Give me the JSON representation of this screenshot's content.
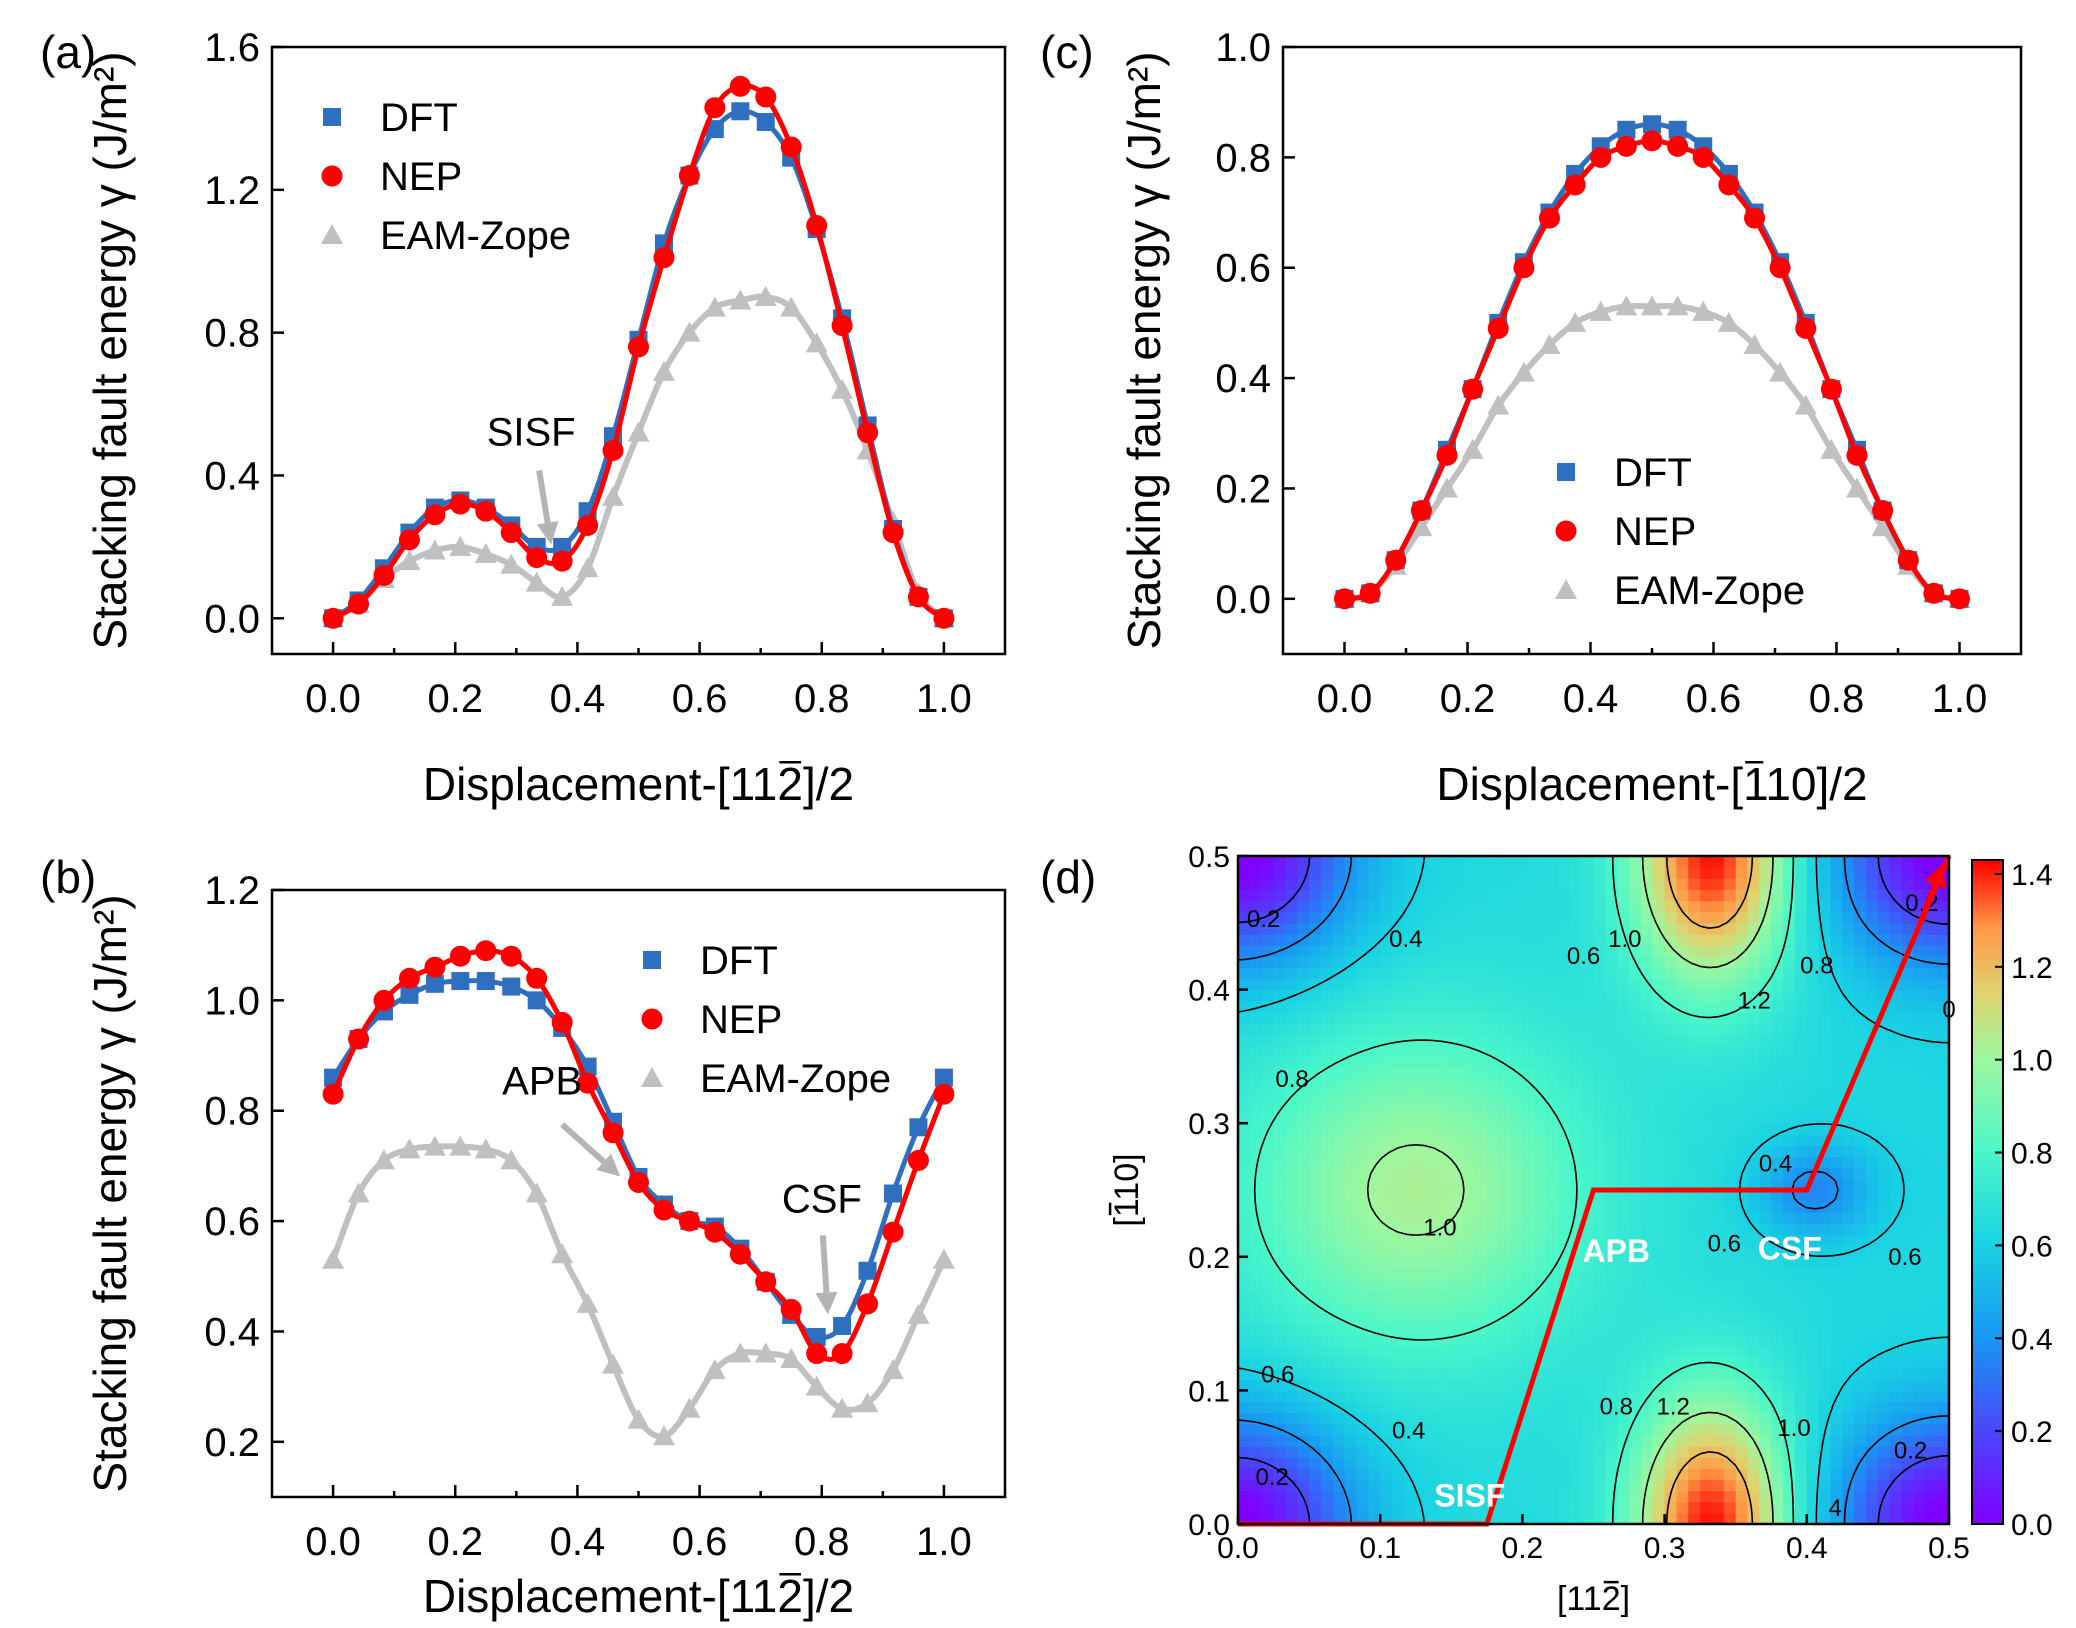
{
  "colors": {
    "dft": "#2e6fbf",
    "nep": "#ff0000",
    "eam": "#c0c0c0",
    "arrow": "#b4b4b4",
    "path": "#ff0000"
  },
  "chart_data": [
    {
      "panel": "(a)",
      "type": "line",
      "xlabel": "Displacement-[11Ā2]/2",
      "xlabel_parts": [
        "Displacement-[11",
        "2",
        "]/2"
      ],
      "ylabel": "Stacking fault energy γ (J/m²)",
      "xlim": [
        -0.1,
        1.1
      ],
      "ylim": [
        -0.1,
        1.6
      ],
      "xticks": [
        0.0,
        0.2,
        0.4,
        0.6,
        0.8,
        1.0
      ],
      "yticks": [
        0.0,
        0.4,
        0.8,
        1.2,
        1.6
      ],
      "xtick_labels": [
        "0.0",
        "0.2",
        "0.4",
        "0.6",
        "0.8",
        "1.0"
      ],
      "ytick_labels": [
        "0.0",
        "0.4",
        "0.8",
        "1.2",
        "1.6"
      ],
      "legend": {
        "position": "top-left",
        "entries": [
          "DFT",
          "NEP",
          "EAM-Zope"
        ]
      },
      "annotations": [
        {
          "text": "SISF",
          "x": 0.357,
          "y": 0.19
        }
      ],
      "x": [
        0,
        0.0417,
        0.0833,
        0.125,
        0.1667,
        0.2083,
        0.25,
        0.2917,
        0.3333,
        0.375,
        0.4167,
        0.4583,
        0.5,
        0.5417,
        0.5833,
        0.625,
        0.6667,
        0.7083,
        0.75,
        0.7917,
        0.8333,
        0.875,
        0.9167,
        0.9583,
        1.0
      ],
      "series": [
        {
          "name": "DFT",
          "values": [
            0,
            0.05,
            0.14,
            0.24,
            0.31,
            0.33,
            0.31,
            0.26,
            0.2,
            0.2,
            0.3,
            0.51,
            0.78,
            1.05,
            1.24,
            1.37,
            1.42,
            1.39,
            1.29,
            1.09,
            0.84,
            0.54,
            0.25,
            0.06,
            0
          ]
        },
        {
          "name": "NEP",
          "values": [
            0,
            0.04,
            0.12,
            0.22,
            0.29,
            0.32,
            0.3,
            0.24,
            0.17,
            0.16,
            0.26,
            0.47,
            0.76,
            1.01,
            1.24,
            1.43,
            1.49,
            1.46,
            1.32,
            1.1,
            0.82,
            0.52,
            0.24,
            0.06,
            0
          ]
        },
        {
          "name": "EAM-Zope",
          "values": [
            0,
            0.04,
            0.11,
            0.16,
            0.19,
            0.2,
            0.18,
            0.15,
            0.1,
            0.06,
            0.14,
            0.34,
            0.52,
            0.69,
            0.8,
            0.87,
            0.89,
            0.9,
            0.87,
            0.77,
            0.64,
            0.47,
            0.27,
            0.07,
            0
          ]
        }
      ]
    },
    {
      "panel": "(b)",
      "type": "line",
      "xlabel": "Displacement-[11Ā2]/2",
      "xlabel_parts": [
        "Displacement-[11",
        "2",
        "]/2"
      ],
      "ylabel": "Stacking fault energy γ (J/m²)",
      "xlim": [
        -0.1,
        1.1
      ],
      "ylim": [
        0.1,
        1.2
      ],
      "xticks": [
        0.0,
        0.2,
        0.4,
        0.6,
        0.8,
        1.0
      ],
      "yticks": [
        0.2,
        0.4,
        0.6,
        0.8,
        1.0,
        1.2
      ],
      "xtick_labels": [
        "0.0",
        "0.2",
        "0.4",
        "0.6",
        "0.8",
        "1.0"
      ],
      "ytick_labels": [
        "0.2",
        "0.4",
        "0.6",
        "0.8",
        "1.0",
        "1.2"
      ],
      "legend": {
        "position": "top-right",
        "entries": [
          "DFT",
          "NEP",
          "EAM-Zope"
        ]
      },
      "annotations": [
        {
          "text": "APB",
          "x": 0.47,
          "y": 0.67
        },
        {
          "text": "CSF",
          "x": 0.81,
          "y": 0.42
        }
      ],
      "x": [
        0,
        0.0417,
        0.0833,
        0.125,
        0.1667,
        0.2083,
        0.25,
        0.2917,
        0.3333,
        0.375,
        0.4167,
        0.4583,
        0.5,
        0.5417,
        0.5833,
        0.625,
        0.6667,
        0.7083,
        0.75,
        0.7917,
        0.8333,
        0.875,
        0.9167,
        0.9583,
        1.0
      ],
      "series": [
        {
          "name": "DFT",
          "values": [
            0.86,
            0.93,
            0.98,
            1.01,
            1.03,
            1.035,
            1.035,
            1.025,
            1.0,
            0.95,
            0.88,
            0.78,
            0.68,
            0.63,
            0.6,
            0.59,
            0.55,
            0.49,
            0.43,
            0.39,
            0.41,
            0.51,
            0.65,
            0.77,
            0.86
          ]
        },
        {
          "name": "NEP",
          "values": [
            0.83,
            0.93,
            1.0,
            1.04,
            1.06,
            1.08,
            1.09,
            1.08,
            1.04,
            0.96,
            0.85,
            0.76,
            0.67,
            0.62,
            0.6,
            0.58,
            0.54,
            0.49,
            0.44,
            0.36,
            0.36,
            0.45,
            0.58,
            0.71,
            0.83
          ]
        },
        {
          "name": "EAM-Zope",
          "values": [
            0.53,
            0.65,
            0.71,
            0.73,
            0.735,
            0.735,
            0.73,
            0.71,
            0.65,
            0.54,
            0.45,
            0.34,
            0.24,
            0.21,
            0.26,
            0.33,
            0.36,
            0.36,
            0.35,
            0.3,
            0.26,
            0.27,
            0.33,
            0.43,
            0.53
          ]
        }
      ]
    },
    {
      "panel": "(c)",
      "type": "line",
      "xlabel": "Displacement-[ī10]/2",
      "xlabel_parts": [
        "Displacement-[",
        "1",
        "10]/2"
      ],
      "ylabel": "Stacking fault energy γ (J/m²)",
      "xlim": [
        -0.1,
        1.1
      ],
      "ylim": [
        -0.1,
        1.0
      ],
      "xticks": [
        0.0,
        0.2,
        0.4,
        0.6,
        0.8,
        1.0
      ],
      "yticks": [
        0.0,
        0.2,
        0.4,
        0.6,
        0.8,
        1.0
      ],
      "xtick_labels": [
        "0.0",
        "0.2",
        "0.4",
        "0.6",
        "0.8",
        "1.0"
      ],
      "ytick_labels": [
        "0.0",
        "0.2",
        "0.4",
        "0.6",
        "0.8",
        "1.0"
      ],
      "legend": {
        "position": "bottom-center",
        "entries": [
          "DFT",
          "NEP",
          "EAM-Zope"
        ]
      },
      "annotations": [],
      "x": [
        0,
        0.0417,
        0.0833,
        0.125,
        0.1667,
        0.2083,
        0.25,
        0.2917,
        0.3333,
        0.375,
        0.4167,
        0.4583,
        0.5,
        0.5417,
        0.5833,
        0.625,
        0.6667,
        0.7083,
        0.75,
        0.7917,
        0.8333,
        0.875,
        0.9167,
        0.9583,
        1.0
      ],
      "series": [
        {
          "name": "DFT",
          "values": [
            0,
            0.01,
            0.07,
            0.16,
            0.27,
            0.38,
            0.5,
            0.61,
            0.7,
            0.77,
            0.82,
            0.85,
            0.86,
            0.85,
            0.82,
            0.77,
            0.7,
            0.61,
            0.5,
            0.38,
            0.27,
            0.16,
            0.07,
            0.01,
            0
          ]
        },
        {
          "name": "NEP",
          "values": [
            0,
            0.01,
            0.07,
            0.16,
            0.26,
            0.38,
            0.49,
            0.6,
            0.69,
            0.75,
            0.8,
            0.82,
            0.83,
            0.82,
            0.8,
            0.75,
            0.69,
            0.6,
            0.49,
            0.38,
            0.26,
            0.16,
            0.07,
            0.01,
            0
          ]
        },
        {
          "name": "EAM-Zope",
          "values": [
            0,
            0.01,
            0.06,
            0.13,
            0.2,
            0.27,
            0.35,
            0.41,
            0.46,
            0.5,
            0.52,
            0.53,
            0.53,
            0.53,
            0.52,
            0.5,
            0.46,
            0.41,
            0.35,
            0.27,
            0.2,
            0.13,
            0.06,
            0.01,
            0
          ]
        }
      ]
    },
    {
      "panel": "(d)",
      "type": "heatmap",
      "xlabel_parts": [
        "[11",
        "2",
        "]"
      ],
      "ylabel_parts": [
        "[",
        "1",
        "10]"
      ],
      "xlim": [
        0.0,
        0.5
      ],
      "ylim": [
        0.0,
        0.5
      ],
      "xticks": [
        0.0,
        0.1,
        0.2,
        0.3,
        0.4,
        0.5
      ],
      "yticks": [
        0.0,
        0.1,
        0.2,
        0.3,
        0.4,
        0.5
      ],
      "xtick_labels": [
        "0.0",
        "0.1",
        "0.2",
        "0.3",
        "0.4",
        "0.5"
      ],
      "ytick_labels": [
        "0.0",
        "0.1",
        "0.2",
        "0.3",
        "0.4",
        "0.5"
      ],
      "colorbar": {
        "min": 0.0,
        "max": 1.43,
        "ticks": [
          0.0,
          0.2,
          0.4,
          0.6,
          0.8,
          1.0,
          1.2,
          1.4
        ],
        "tick_labels": [
          "0.0",
          "0.2",
          "0.4",
          "0.6",
          "0.8",
          "1.0",
          "1.2",
          "1.4"
        ],
        "colormap": "rainbow"
      },
      "maxima": [
        {
          "x": 0.333,
          "y": 0.0,
          "value": 1.42
        },
        {
          "x": 0.333,
          "y": 0.5,
          "value": 1.42
        },
        {
          "x": 0.125,
          "y": 0.25,
          "value": 1.03
        },
        {
          "x": 0.5,
          "y": 0.25,
          "value": 0.62
        }
      ],
      "minima": [
        {
          "x": 0.0,
          "y": 0.0,
          "value": 0.0
        },
        {
          "x": 0.5,
          "y": 0.0,
          "value": 0.0
        },
        {
          "x": 0.0,
          "y": 0.5,
          "value": 0.0
        },
        {
          "x": 0.5,
          "y": 0.5,
          "value": 0.0
        },
        {
          "x": 0.405,
          "y": 0.25,
          "value": 0.38
        }
      ],
      "contour_labels": [
        {
          "text": "0.2",
          "x": 0.018,
          "y": 0.453
        },
        {
          "text": "0.4",
          "x": 0.118,
          "y": 0.438
        },
        {
          "text": "0.6",
          "x": 0.243,
          "y": 0.425
        },
        {
          "text": "1.0",
          "x": 0.272,
          "y": 0.438
        },
        {
          "text": "1.2",
          "x": 0.363,
          "y": 0.392
        },
        {
          "text": "0.8",
          "x": 0.407,
          "y": 0.418
        },
        {
          "text": "0.2",
          "x": 0.481,
          "y": 0.465
        },
        {
          "text": "0",
          "x": 0.5,
          "y": 0.385
        },
        {
          "text": "0.8",
          "x": 0.038,
          "y": 0.333
        },
        {
          "text": "1.0",
          "x": 0.142,
          "y": 0.222
        },
        {
          "text": "0.4",
          "x": 0.378,
          "y": 0.27
        },
        {
          "text": "0.6",
          "x": 0.342,
          "y": 0.21
        },
        {
          "text": "0.6",
          "x": 0.469,
          "y": 0.2
        },
        {
          "text": "0.6",
          "x": 0.028,
          "y": 0.112
        },
        {
          "text": "0.8",
          "x": 0.266,
          "y": 0.088
        },
        {
          "text": "1.2",
          "x": 0.306,
          "y": 0.088
        },
        {
          "text": "1.0",
          "x": 0.391,
          "y": 0.072
        },
        {
          "text": "0.4",
          "x": 0.12,
          "y": 0.07
        },
        {
          "text": "0.2",
          "x": 0.024,
          "y": 0.035
        },
        {
          "text": "0.2",
          "x": 0.473,
          "y": 0.055
        },
        {
          "text": "4",
          "x": 0.42,
          "y": 0.012
        }
      ],
      "path": [
        [
          0.0,
          0.0
        ],
        [
          0.175,
          0.0
        ],
        [
          0.25,
          0.25
        ],
        [
          0.4,
          0.25
        ],
        [
          0.5,
          0.5
        ]
      ],
      "annotations": [
        {
          "text": "SISF",
          "x": 0.163,
          "y": 0.022
        },
        {
          "text": "APB",
          "x": 0.266,
          "y": 0.205
        },
        {
          "text": "CSF",
          "x": 0.388,
          "y": 0.207
        }
      ]
    }
  ]
}
